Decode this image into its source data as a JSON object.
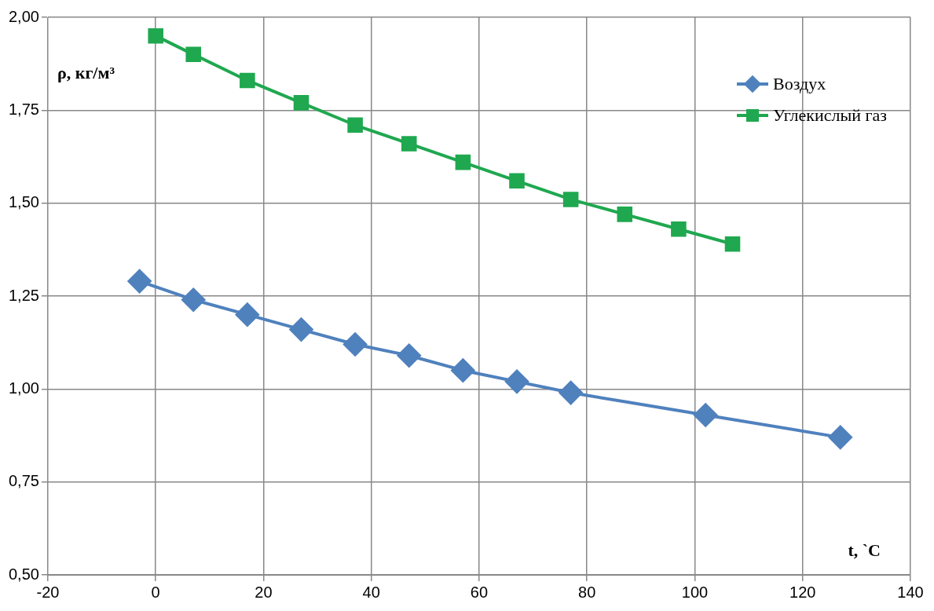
{
  "chart_data": {
    "type": "line",
    "xlabel": "t, `C",
    "ylabel": "ρ, кг/м³",
    "xlim": [
      -20,
      140
    ],
    "xticks": [
      -20,
      0,
      20,
      40,
      60,
      80,
      100,
      120,
      140
    ],
    "ylim": [
      0.5,
      2.0
    ],
    "yticks": [
      {
        "value": 0.5,
        "label": "0,50"
      },
      {
        "value": 0.75,
        "label": "0,75"
      },
      {
        "value": 1.0,
        "label": "1,00"
      },
      {
        "value": 1.25,
        "label": "1,25"
      },
      {
        "value": 1.5,
        "label": "1,50"
      },
      {
        "value": 1.75,
        "label": "1,75"
      },
      {
        "value": 2.0,
        "label": "2,00"
      }
    ],
    "grid": true,
    "legend": "top right",
    "line_style": "solid",
    "series": [
      {
        "name": "Воздух",
        "color": "#4f81bd",
        "marker": "diamond",
        "x": [
          -3,
          7,
          17,
          27,
          37,
          47,
          57,
          67,
          77,
          102,
          127
        ],
        "values": [
          1.29,
          1.24,
          1.2,
          1.16,
          1.12,
          1.09,
          1.05,
          1.02,
          0.99,
          0.93,
          0.87
        ]
      },
      {
        "name": "Углекислый газ",
        "color": "#1fa84f",
        "marker": "square",
        "x": [
          0,
          7,
          17,
          27,
          37,
          47,
          57,
          67,
          77,
          87,
          97,
          107
        ],
        "values": [
          1.95,
          1.9,
          1.83,
          1.77,
          1.71,
          1.66,
          1.61,
          1.56,
          1.51,
          1.47,
          1.43,
          1.39
        ]
      }
    ]
  }
}
